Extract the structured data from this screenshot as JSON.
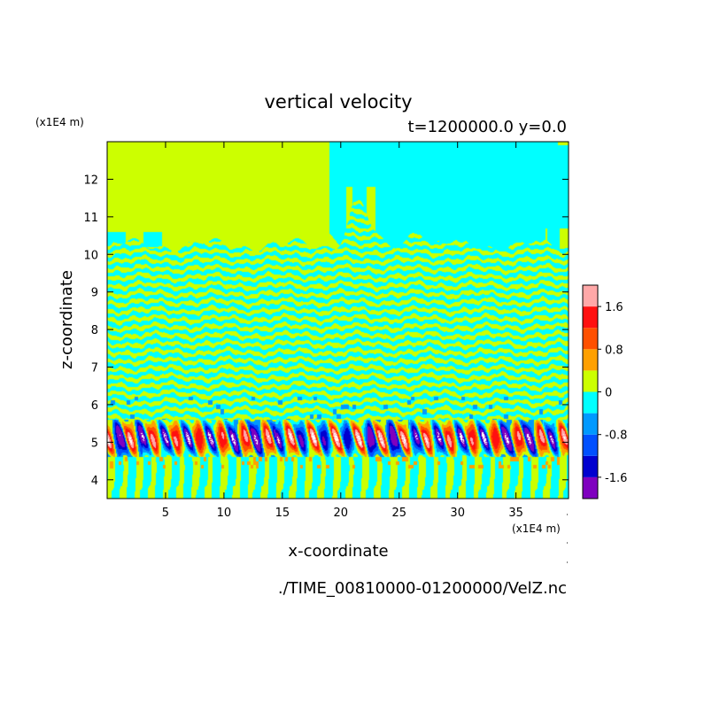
{
  "chart_data": {
    "type": "heatmap",
    "title": "vertical velocity",
    "subtitle": "t=1200000.0 y=0.0",
    "xlabel": "x-coordinate",
    "ylabel": "z-coordinate",
    "x_unit": "(x1E4 m)",
    "z_unit": "(x1E4 m)",
    "xlim": [
      0,
      39.5
    ],
    "ylim": [
      3.5,
      13
    ],
    "x_ticks": [
      5,
      10,
      15,
      20,
      25,
      30,
      35
    ],
    "y_ticks": [
      4,
      5,
      6,
      7,
      8,
      9,
      10,
      11,
      12
    ],
    "colorbar": {
      "levels": [
        -2.0,
        -1.6,
        -1.2,
        -0.8,
        -0.4,
        0,
        0.4,
        0.8,
        1.2,
        1.6,
        2.0
      ],
      "colors": [
        "#7f00bf",
        "#0000cf",
        "#0050ff",
        "#0099ff",
        "#00ffff",
        "#ccff00",
        "#ffa000",
        "#ff5000",
        "#ff1010",
        "#ffa8a8"
      ],
      "tick_labels": [
        "1.6",
        "0.8",
        "0",
        "-0.8",
        "-1.6"
      ],
      "tick_values": [
        1.6,
        0.8,
        0,
        -0.8,
        -1.6
      ]
    },
    "regions": {
      "upper_quiet_layer": "z 10.2-13, mostly 0 to 0.4 with a -0.4 to 0 region in upper right",
      "wave_layer": "z 5.6-10.2, alternating bands near 0",
      "strong_wave_band": "z 4.6-5.6, values -1.6 to 1.6",
      "lower_layer": "z 3.5-4.6, vertical streaks near 0"
    }
  },
  "filename": "./TIME_00810000-01200000/VelZ.nc"
}
